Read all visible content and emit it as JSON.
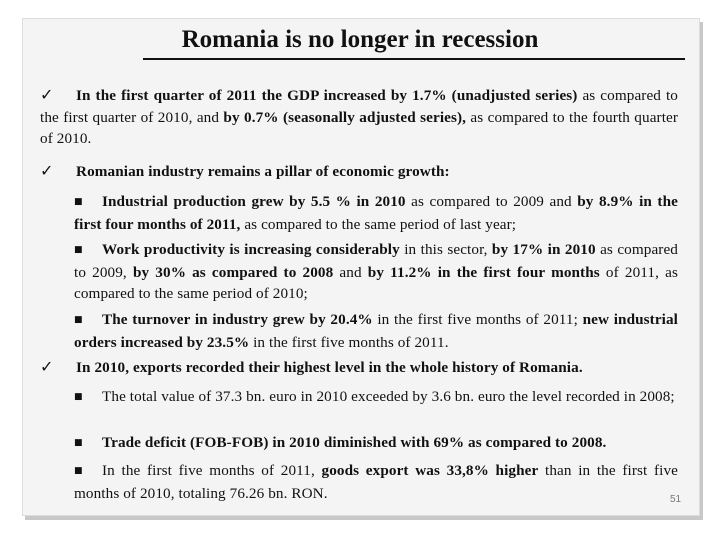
{
  "slide": {
    "title": "Romania is no longer in recession",
    "page_number": "51"
  },
  "bullets": {
    "check_symbol": "✓",
    "square_symbol": "■",
    "b1": {
      "p1": "In the first quarter of 2011 the GDP increased by 1.7% (unadjusted series)",
      "p2": " as compared to the first quarter of 2010, and ",
      "p3": "by 0.7% (seasonally adjusted series),",
      "p4": " as compared to the fourth quarter of 2010."
    },
    "b2": {
      "p1": "Romanian industry remains a pillar of economic growth:"
    },
    "b2a": {
      "p1": "Industrial production grew by 5.5 % in 2010",
      "p2": " as compared to 2009 and ",
      "p3": "by 8.9% in the first four months of 2011,",
      "p4": " as compared to the same period of last year;"
    },
    "b2b": {
      "p1": "Work productivity is increasing considerably",
      "p2": " in this sector, ",
      "p3": "by 17% in 2010",
      "p4": " as compared to 2009, ",
      "p5": "by 30% as compared to 2008",
      "p6": " and ",
      "p7": "by 11.2% in the first four months",
      "p8": " of 2011, as compared to the same period of 2010;"
    },
    "b2c": {
      "p1": "The turnover in industry grew by 20.4%",
      "p2": " in the first five months of 2011; ",
      "p3": "new industrial orders increased by 23.5%",
      "p4": " in the first five months of 2011."
    },
    "b3": {
      "p1": "In 2010, exports recorded their highest level in the whole history of Romania."
    },
    "b3a": {
      "p1": "The total value of 37.3 bn. euro in 2010 exceeded by 3.6 bn. euro the level recorded in 2008;"
    },
    "b3b": {
      "p1": "Trade deficit (FOB-FOB) in 2010 diminished with 69% as compared to 2008."
    },
    "b3c": {
      "p1": "In the first five months of 2011, ",
      "p2": "goods export was 33,8% higher",
      "p3": " than in the first five months of 2010, totaling 76.26 bn. RON."
    }
  }
}
